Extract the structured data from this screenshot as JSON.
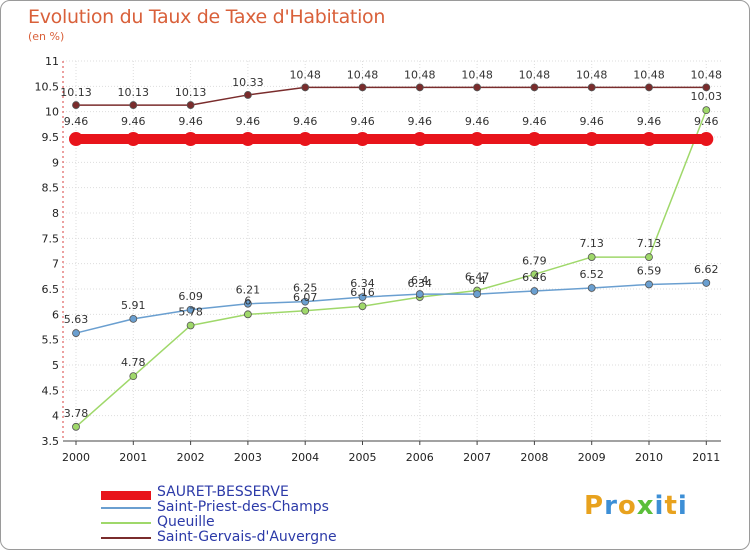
{
  "chart_data": {
    "type": "line",
    "title": "Evolution du Taux de Taxe d'Habitation",
    "subtitle": "(en %)",
    "x": [
      "2000",
      "2001",
      "2002",
      "2003",
      "2004",
      "2005",
      "2006",
      "2007",
      "2008",
      "2009",
      "2010",
      "2011"
    ],
    "ylim": [
      3.5,
      11
    ],
    "yticks": [
      "3.5",
      "4",
      "4.5",
      "5",
      "5.5",
      "6",
      "6.5",
      "7",
      "7.5",
      "8",
      "8.5",
      "9",
      "9.5",
      "10",
      "10.5",
      "11"
    ],
    "grid": true,
    "legend_position": "bottom-left",
    "series": [
      {
        "name": "SAURET-BESSERVE",
        "color": "#e8141b",
        "values": [
          9.46,
          9.46,
          9.46,
          9.46,
          9.46,
          9.46,
          9.46,
          9.46,
          9.46,
          9.46,
          9.46,
          9.46
        ],
        "labels": [
          "9.46",
          "9.46",
          "9.46",
          "9.46",
          "9.46",
          "9.46",
          "9.46",
          "9.46",
          "9.46",
          "9.46",
          "9.46",
          "9.46"
        ]
      },
      {
        "name": "Saint-Priest-des-Champs",
        "color": "#6a9fd0",
        "values": [
          5.63,
          5.91,
          6.09,
          6.21,
          6.25,
          6.34,
          6.4,
          6.4,
          6.46,
          6.52,
          6.59,
          6.62
        ],
        "labels": [
          "5.63",
          "5.91",
          "6.09",
          "6.21",
          "6.25",
          "6.34",
          "6.4",
          "6.4",
          "6.46",
          "6.52",
          "6.59",
          "6.62"
        ]
      },
      {
        "name": "Queuille",
        "color": "#9fd86a",
        "values": [
          3.78,
          4.78,
          5.78,
          6.0,
          6.07,
          6.16,
          6.34,
          6.47,
          6.79,
          7.13,
          7.13,
          10.03
        ],
        "labels": [
          "3.78",
          "4.78",
          "5.78",
          "6",
          "6.07",
          "6.16",
          "6.34",
          "6.47",
          "6.79",
          "7.13",
          "7.13",
          "10.03"
        ]
      },
      {
        "name": "Saint-Gervais-d'Auvergne",
        "color": "#7a2c2c",
        "values": [
          10.13,
          10.13,
          10.13,
          10.33,
          10.48,
          10.48,
          10.48,
          10.48,
          10.48,
          10.48,
          10.48,
          10.48
        ],
        "labels": [
          "10.13",
          "10.13",
          "10.13",
          "10.33",
          "10.48",
          "10.48",
          "10.48",
          "10.48",
          "10.48",
          "10.48",
          "10.48",
          "10.48"
        ]
      }
    ]
  },
  "logo": {
    "letters": [
      "P",
      "r",
      "o",
      "x",
      "i",
      "t",
      "i"
    ],
    "colors": [
      "#e8a21e",
      "#3d8fd6",
      "#e8a21e",
      "#5bbf3a",
      "#3d8fd6",
      "#e8a21e",
      "#3d8fd6"
    ]
  }
}
